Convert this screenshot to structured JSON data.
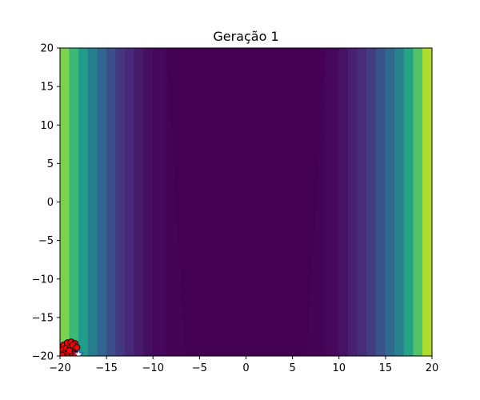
{
  "chart_data": {
    "type": "scatter",
    "title": "Geração 1",
    "xlabel": "",
    "ylabel": "",
    "xlim": [
      -20,
      20
    ],
    "ylim": [
      -20,
      20
    ],
    "xticks": [
      "−20",
      "−15",
      "−10",
      "−5",
      "0",
      "5",
      "10",
      "15",
      "20"
    ],
    "yticks": [
      "20",
      "15",
      "10",
      "5",
      "0",
      "−5",
      "−10",
      "−15",
      "−20"
    ],
    "grid": false,
    "background": {
      "type": "filled-contour",
      "colormap": "viridis",
      "columns": [
        {
          "x": [
            -20.0,
            -19.0
          ],
          "level": 0.8
        },
        {
          "x": [
            -19.0,
            -18.0
          ],
          "level": 0.68
        },
        {
          "x": [
            -18.0,
            -17.0
          ],
          "level": 0.55
        },
        {
          "x": [
            -17.0,
            -16.0
          ],
          "level": 0.43
        },
        {
          "x": [
            -16.0,
            -15.0
          ],
          "level": 0.33
        },
        {
          "x": [
            -15.0,
            -14.0
          ],
          "level": 0.24
        },
        {
          "x": [
            -14.0,
            -13.0
          ],
          "level": 0.17
        },
        {
          "x": [
            -13.0,
            -12.0
          ],
          "level": 0.11
        },
        {
          "x": [
            -12.0,
            -11.0
          ],
          "level": 0.07
        },
        {
          "x": [
            -11.0,
            -10.0
          ],
          "level": 0.04
        },
        {
          "x": [
            -10.0,
            -8.5
          ],
          "level": 0.02
        },
        {
          "x": [
            -8.5,
            8.5
          ],
          "level": 0.0
        },
        {
          "x": [
            8.5,
            10.0
          ],
          "level": 0.02
        },
        {
          "x": [
            10.0,
            11.0
          ],
          "level": 0.05
        },
        {
          "x": [
            11.0,
            12.0
          ],
          "level": 0.09
        },
        {
          "x": [
            12.0,
            13.0
          ],
          "level": 0.13
        },
        {
          "x": [
            13.0,
            14.0
          ],
          "level": 0.18
        },
        {
          "x": [
            14.0,
            15.0
          ],
          "level": 0.25
        },
        {
          "x": [
            15.0,
            16.0
          ],
          "level": 0.34
        },
        {
          "x": [
            16.0,
            17.0
          ],
          "level": 0.45
        },
        {
          "x": [
            17.0,
            18.0
          ],
          "level": 0.58
        },
        {
          "x": [
            18.0,
            19.0
          ],
          "level": 0.72
        },
        {
          "x": [
            19.0,
            20.0
          ],
          "level": 0.88
        }
      ]
    },
    "series": [
      {
        "marker": "circle",
        "color": "#ff0000",
        "edgecolor": "#000000",
        "points": [
          [
            -19.6,
            -18.6
          ],
          [
            -19.2,
            -18.3
          ],
          [
            -18.8,
            -18.2
          ],
          [
            -18.4,
            -18.4
          ],
          [
            -19.7,
            -19.2
          ],
          [
            -19.3,
            -19.0
          ],
          [
            -18.9,
            -18.9
          ],
          [
            -18.5,
            -19.1
          ],
          [
            -19.5,
            -19.7
          ],
          [
            -19.1,
            -19.6
          ],
          [
            -18.7,
            -19.6
          ],
          [
            -18.3,
            -19.8
          ],
          [
            -19.8,
            -19.9
          ],
          [
            -18.6,
            -18.6
          ],
          [
            -19.0,
            -19.3
          ],
          [
            -18.2,
            -18.9
          ]
        ]
      },
      {
        "marker": "star",
        "color": "#ffffff",
        "edgecolor": "#1f3fbf",
        "points": [
          [
            -18.0,
            -19.8
          ]
        ]
      }
    ]
  },
  "colors": {
    "viridis": [
      "#440154",
      "#482878",
      "#3e4989",
      "#31688e",
      "#26828e",
      "#1f9e89",
      "#35b779",
      "#6ece58",
      "#b5de2b",
      "#fde725"
    ]
  }
}
